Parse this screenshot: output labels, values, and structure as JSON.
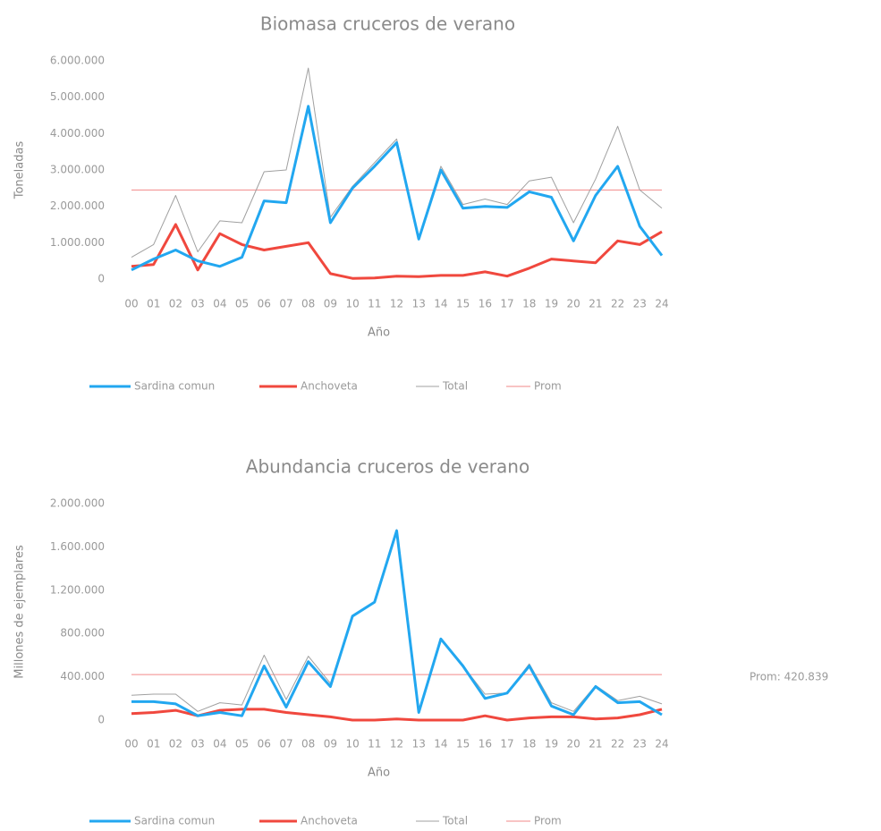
{
  "chart_data": [
    {
      "type": "line",
      "title": "Biomasa cruceros de verano",
      "x_label": "Año",
      "y_label": "Toneladas",
      "categories": [
        "00",
        "01",
        "02",
        "03",
        "04",
        "05",
        "06",
        "07",
        "08",
        "09",
        "10",
        "11",
        "12",
        "13",
        "14",
        "15",
        "16",
        "17",
        "18",
        "19",
        "20",
        "21",
        "22",
        "23",
        "24"
      ],
      "ylim": [
        0,
        6000000
      ],
      "yticks": [
        0,
        {
          "value": 1000000,
          "label": "1.000.000"
        },
        {
          "value": 2000000,
          "label": "2.000.000"
        },
        {
          "value": 3000000,
          "label": "3.000.000"
        },
        {
          "value": 4000000,
          "label": "4.000.000"
        },
        {
          "value": 5000000,
          "label": "5.000.000"
        },
        {
          "value": 6000000,
          "label": "6.000.000"
        }
      ],
      "grid": false,
      "legend": "bottom",
      "series": [
        {
          "name": "Sardina comun",
          "color": "#22a7f0",
          "values": [
            250000,
            550000,
            800000,
            500000,
            350000,
            600000,
            2150000,
            2100000,
            4750000,
            1550000,
            2500000,
            3100000,
            3750000,
            1100000,
            3000000,
            1950000,
            2000000,
            1970000,
            2400000,
            2250000,
            1050000,
            2300000,
            3100000,
            1450000,
            650000
          ]
        },
        {
          "name": "Anchoveta",
          "color": "#f0483e",
          "values": [
            350000,
            400000,
            1500000,
            250000,
            1250000,
            950000,
            800000,
            900000,
            1000000,
            150000,
            20000,
            30000,
            80000,
            70000,
            100000,
            100000,
            200000,
            80000,
            300000,
            550000,
            500000,
            450000,
            1050000,
            950000,
            1300000
          ]
        },
        {
          "name": "Total",
          "color": "#a0a0a0",
          "values": [
            600000,
            950000,
            2300000,
            750000,
            1600000,
            1550000,
            2950000,
            3000000,
            5800000,
            1700000,
            2550000,
            3200000,
            3850000,
            1150000,
            3100000,
            2050000,
            2200000,
            2050000,
            2700000,
            2800000,
            1550000,
            2750000,
            4200000,
            2450000,
            1950000
          ]
        },
        {
          "name": "Prom",
          "color": "#f28a8a",
          "values": [
            2450000,
            2450000,
            2450000,
            2450000,
            2450000,
            2450000,
            2450000,
            2450000,
            2450000,
            2450000,
            2450000,
            2450000,
            2450000,
            2450000,
            2450000,
            2450000,
            2450000,
            2450000,
            2450000,
            2450000,
            2450000,
            2450000,
            2450000,
            2450000,
            2450000
          ]
        }
      ]
    },
    {
      "type": "line",
      "title": "Abundancia cruceros de verano",
      "x_label": "Año",
      "y_label": "Millones de ejemplares",
      "annotation": "Prom: 420.839",
      "categories": [
        "00",
        "01",
        "02",
        "03",
        "04",
        "05",
        "06",
        "07",
        "08",
        "09",
        "10",
        "11",
        "12",
        "13",
        "14",
        "15",
        "16",
        "17",
        "18",
        "19",
        "20",
        "21",
        "22",
        "23",
        "24"
      ],
      "ylim": [
        0,
        2000000
      ],
      "yticks": [
        0,
        {
          "value": 400000,
          "label": "400.000"
        },
        {
          "value": 800000,
          "label": "800.000"
        },
        {
          "value": 1200000,
          "label": "1.200.000"
        },
        {
          "value": 1600000,
          "label": "1.600.000"
        },
        {
          "value": 2000000,
          "label": "2.000.000"
        }
      ],
      "grid": false,
      "legend": "bottom",
      "series": [
        {
          "name": "Sardina comun",
          "color": "#22a7f0",
          "values": [
            170000,
            170000,
            150000,
            40000,
            70000,
            40000,
            500000,
            120000,
            540000,
            310000,
            960000,
            1090000,
            1750000,
            70000,
            750000,
            500000,
            200000,
            250000,
            500000,
            130000,
            50000,
            310000,
            160000,
            170000,
            50000
          ]
        },
        {
          "name": "Anchoveta",
          "color": "#f0483e",
          "values": [
            60000,
            70000,
            90000,
            40000,
            90000,
            100000,
            100000,
            70000,
            50000,
            30000,
            0,
            0,
            10000,
            0,
            0,
            0,
            40000,
            0,
            20000,
            30000,
            30000,
            10000,
            20000,
            50000,
            100000
          ]
        },
        {
          "name": "Total",
          "color": "#a0a0a0",
          "values": [
            230000,
            240000,
            240000,
            80000,
            160000,
            140000,
            600000,
            190000,
            590000,
            340000,
            960000,
            1090000,
            1760000,
            70000,
            750000,
            500000,
            240000,
            250000,
            520000,
            160000,
            80000,
            320000,
            180000,
            220000,
            150000
          ]
        },
        {
          "name": "Prom",
          "color": "#f28a8a",
          "values": [
            420839,
            420839,
            420839,
            420839,
            420839,
            420839,
            420839,
            420839,
            420839,
            420839,
            420839,
            420839,
            420839,
            420839,
            420839,
            420839,
            420839,
            420839,
            420839,
            420839,
            420839,
            420839,
            420839,
            420839,
            420839
          ]
        }
      ]
    }
  ]
}
